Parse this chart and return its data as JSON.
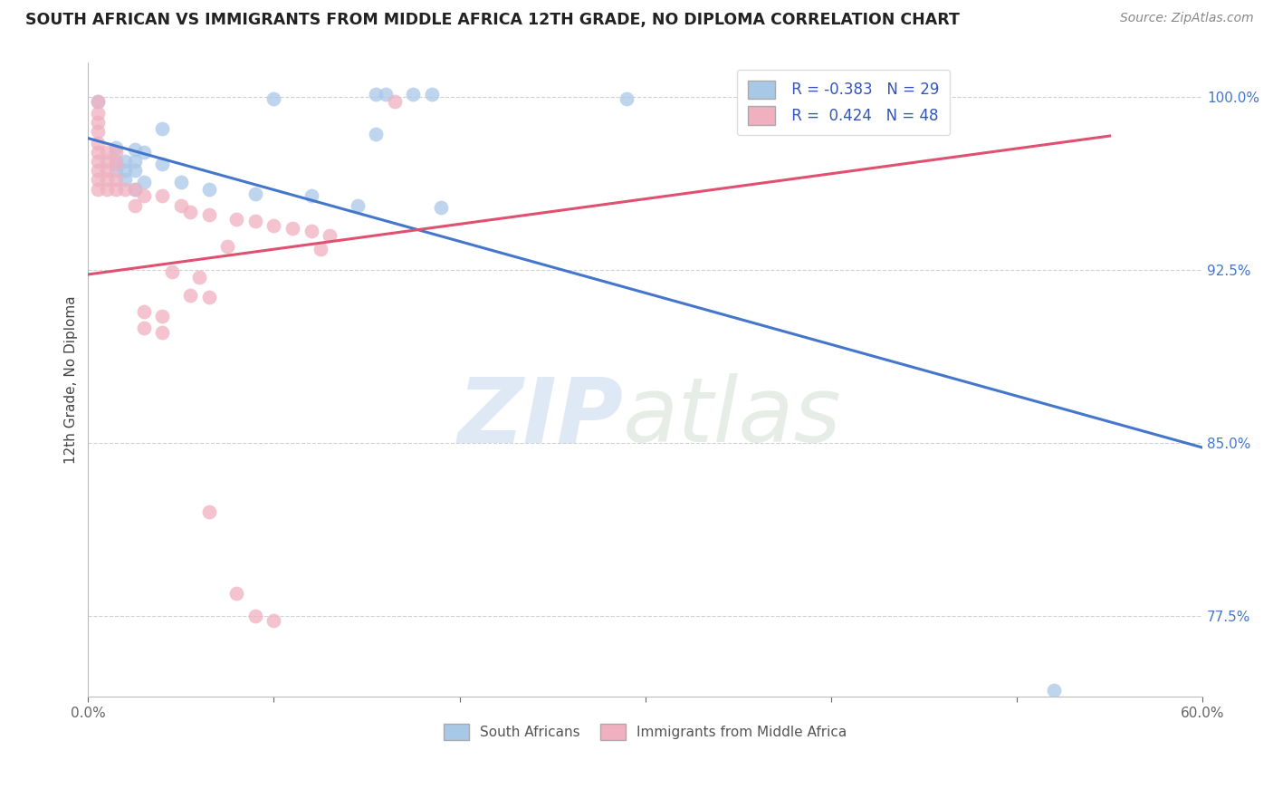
{
  "title": "SOUTH AFRICAN VS IMMIGRANTS FROM MIDDLE AFRICA 12TH GRADE, NO DIPLOMA CORRELATION CHART",
  "source": "Source: ZipAtlas.com",
  "ylabel": "12th Grade, No Diploma",
  "xlim": [
    0.0,
    0.6
  ],
  "ylim": [
    0.74,
    1.015
  ],
  "legend_R1": "R = -0.383",
  "legend_N1": "N = 29",
  "legend_R2": "R =  0.424",
  "legend_N2": "N = 48",
  "blue_color": "#a8c8e8",
  "pink_color": "#f0b0c0",
  "line_blue": "#4477cc",
  "line_pink": "#e05070",
  "ytick_values": [
    0.775,
    0.85,
    0.925,
    1.0
  ],
  "ytick_labels": [
    "77.5%",
    "85.0%",
    "92.5%",
    "100.0%"
  ],
  "ytick_color": "#4477cc",
  "xtick_values": [
    0.0,
    0.1,
    0.2,
    0.3,
    0.4,
    0.5,
    0.6
  ],
  "xtick_labels": [
    "0.0%",
    "",
    "",
    "",
    "",
    "",
    "60.0%"
  ],
  "watermark_zip": "ZIP",
  "watermark_atlas": "atlas",
  "blue_scatter": [
    [
      0.005,
      0.998
    ],
    [
      0.1,
      0.999
    ],
    [
      0.155,
      1.001
    ],
    [
      0.16,
      1.001
    ],
    [
      0.175,
      1.001
    ],
    [
      0.185,
      1.001
    ],
    [
      0.29,
      0.999
    ],
    [
      0.04,
      0.986
    ],
    [
      0.155,
      0.984
    ],
    [
      0.015,
      0.978
    ],
    [
      0.025,
      0.977
    ],
    [
      0.03,
      0.976
    ],
    [
      0.015,
      0.972
    ],
    [
      0.02,
      0.972
    ],
    [
      0.025,
      0.972
    ],
    [
      0.04,
      0.971
    ],
    [
      0.015,
      0.968
    ],
    [
      0.02,
      0.968
    ],
    [
      0.025,
      0.968
    ],
    [
      0.02,
      0.964
    ],
    [
      0.03,
      0.963
    ],
    [
      0.05,
      0.963
    ],
    [
      0.025,
      0.96
    ],
    [
      0.065,
      0.96
    ],
    [
      0.09,
      0.958
    ],
    [
      0.12,
      0.957
    ],
    [
      0.145,
      0.953
    ],
    [
      0.19,
      0.952
    ],
    [
      0.52,
      0.743
    ]
  ],
  "pink_scatter": [
    [
      0.005,
      0.998
    ],
    [
      0.165,
      0.998
    ],
    [
      0.005,
      0.993
    ],
    [
      0.005,
      0.989
    ],
    [
      0.005,
      0.985
    ],
    [
      0.005,
      0.98
    ],
    [
      0.005,
      0.976
    ],
    [
      0.01,
      0.976
    ],
    [
      0.015,
      0.976
    ],
    [
      0.005,
      0.972
    ],
    [
      0.01,
      0.972
    ],
    [
      0.015,
      0.971
    ],
    [
      0.005,
      0.968
    ],
    [
      0.01,
      0.968
    ],
    [
      0.005,
      0.964
    ],
    [
      0.01,
      0.964
    ],
    [
      0.015,
      0.964
    ],
    [
      0.005,
      0.96
    ],
    [
      0.01,
      0.96
    ],
    [
      0.015,
      0.96
    ],
    [
      0.02,
      0.96
    ],
    [
      0.025,
      0.96
    ],
    [
      0.03,
      0.957
    ],
    [
      0.04,
      0.957
    ],
    [
      0.025,
      0.953
    ],
    [
      0.05,
      0.953
    ],
    [
      0.055,
      0.95
    ],
    [
      0.065,
      0.949
    ],
    [
      0.08,
      0.947
    ],
    [
      0.09,
      0.946
    ],
    [
      0.1,
      0.944
    ],
    [
      0.11,
      0.943
    ],
    [
      0.12,
      0.942
    ],
    [
      0.13,
      0.94
    ],
    [
      0.075,
      0.935
    ],
    [
      0.125,
      0.934
    ],
    [
      0.045,
      0.924
    ],
    [
      0.06,
      0.922
    ],
    [
      0.055,
      0.914
    ],
    [
      0.065,
      0.913
    ],
    [
      0.03,
      0.907
    ],
    [
      0.04,
      0.905
    ],
    [
      0.03,
      0.9
    ],
    [
      0.04,
      0.898
    ],
    [
      0.065,
      0.82
    ],
    [
      0.08,
      0.785
    ],
    [
      0.09,
      0.775
    ],
    [
      0.1,
      0.773
    ]
  ],
  "blue_line_x": [
    0.0,
    0.6
  ],
  "blue_line_y": [
    0.982,
    0.848
  ],
  "pink_line_x": [
    0.0,
    0.55
  ],
  "pink_line_y": [
    0.923,
    0.983
  ]
}
